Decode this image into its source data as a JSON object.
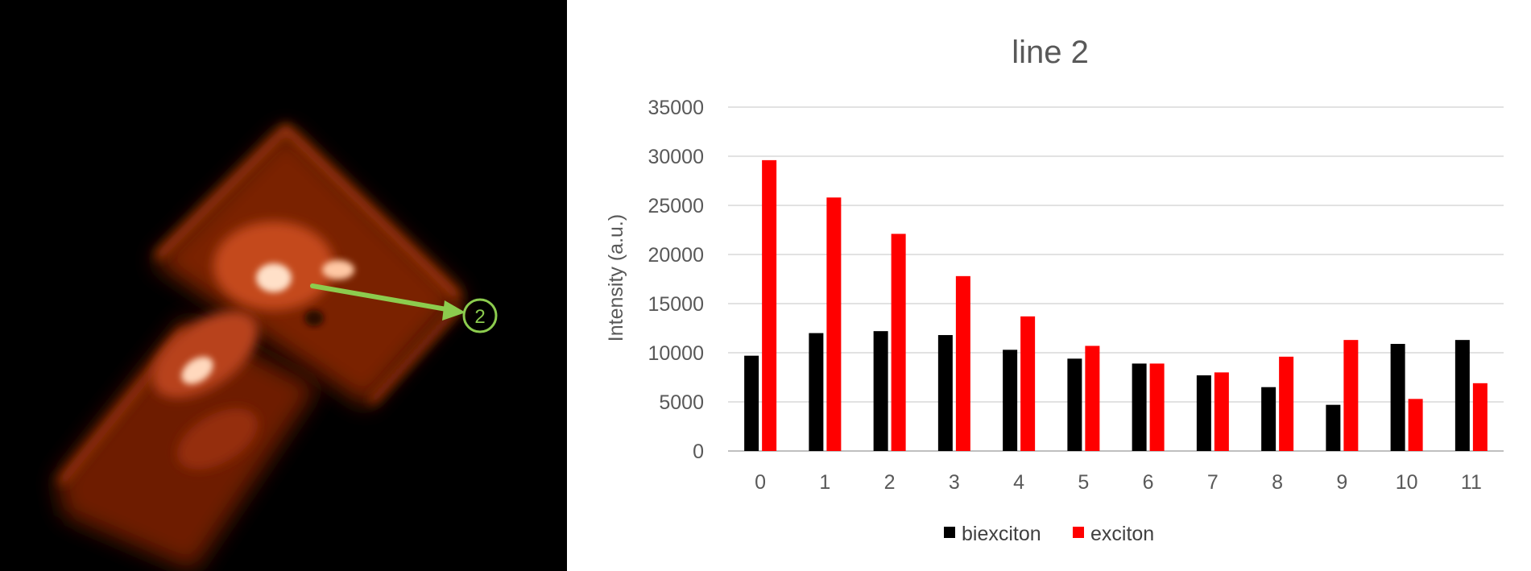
{
  "image": {
    "marker_label": "2",
    "colors": {
      "background": "#000000",
      "glow": "#c8441a",
      "arrow": "#8ccc4e"
    }
  },
  "chart_data": {
    "type": "bar",
    "title": "line 2",
    "xlabel": "",
    "ylabel": "Intensity (a.u.)",
    "ylim": [
      0,
      35000
    ],
    "yticks": [
      0,
      5000,
      10000,
      15000,
      20000,
      25000,
      30000,
      35000
    ],
    "grid": true,
    "legend_position": "bottom",
    "categories": [
      "0",
      "1",
      "2",
      "3",
      "4",
      "5",
      "6",
      "7",
      "8",
      "9",
      "10",
      "11"
    ],
    "series": [
      {
        "name": "biexciton",
        "color": "#000000",
        "values": [
          9700,
          12000,
          12200,
          11800,
          10300,
          9400,
          8900,
          7700,
          6500,
          4700,
          10900,
          11300
        ]
      },
      {
        "name": "exciton",
        "color": "#ff0000",
        "values": [
          29600,
          25800,
          22100,
          17800,
          13700,
          10700,
          8900,
          8000,
          9600,
          11300,
          5300,
          6900
        ]
      }
    ]
  }
}
